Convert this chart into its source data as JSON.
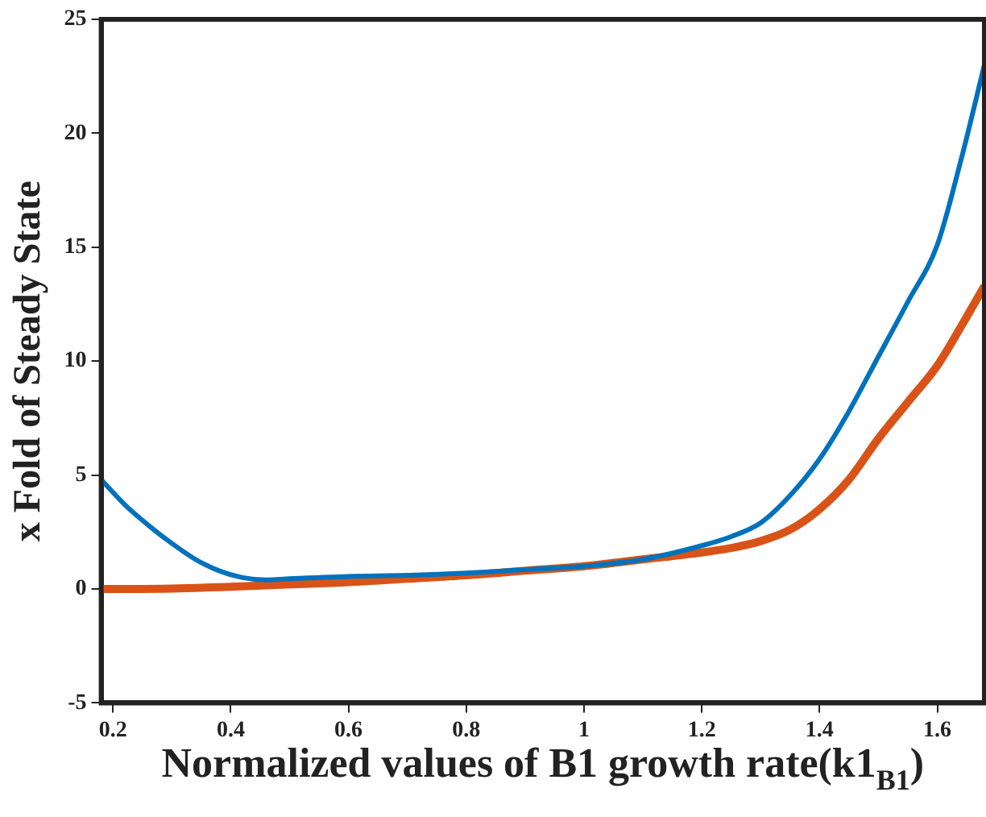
{
  "chart_data": {
    "type": "line",
    "xlabel": "Normalized values of B1 growth rate(k1$_{B1}$)",
    "ylabel": "x Fold of Steady State",
    "xlim": [
      0.18,
      1.68
    ],
    "xticks": [
      0.2,
      0.4,
      0.6,
      0.8,
      1,
      1.2,
      1.4,
      1.6
    ],
    "ylim": [
      -5,
      25
    ],
    "yticks": [
      -5,
      0,
      5,
      10,
      15,
      20,
      25
    ],
    "grid": false,
    "legend": false,
    "marker": "none",
    "line_style": "solid",
    "series": [
      {
        "color": "#0072bd",
        "x": [
          0.18,
          0.22,
          0.26,
          0.3,
          0.34,
          0.38,
          0.42,
          0.46,
          0.5,
          0.6,
          0.7,
          0.8,
          0.9,
          1.0,
          1.1,
          1.2,
          1.25,
          1.3,
          1.35,
          1.4,
          1.45,
          1.5,
          1.55,
          1.6,
          1.64,
          1.68
        ],
        "values": [
          4.8,
          3.7,
          2.8,
          2.0,
          1.3,
          0.8,
          0.5,
          0.4,
          0.45,
          0.55,
          0.6,
          0.7,
          0.85,
          1.0,
          1.3,
          1.9,
          2.3,
          2.9,
          4.1,
          5.7,
          7.8,
          10.2,
          12.6,
          15.1,
          18.8,
          23
        ]
      },
      {
        "color": "#d95319",
        "x": [
          0.18,
          0.3,
          0.4,
          0.5,
          0.6,
          0.7,
          0.8,
          0.9,
          1.0,
          1.1,
          1.2,
          1.25,
          1.3,
          1.35,
          1.4,
          1.45,
          1.5,
          1.55,
          1.6,
          1.64,
          1.68
        ],
        "values": [
          0,
          0.02,
          0.1,
          0.2,
          0.3,
          0.45,
          0.6,
          0.8,
          1.0,
          1.3,
          1.6,
          1.8,
          2.1,
          2.6,
          3.5,
          4.8,
          6.6,
          8.2,
          9.8,
          11.5,
          13.3
        ]
      }
    ]
  }
}
